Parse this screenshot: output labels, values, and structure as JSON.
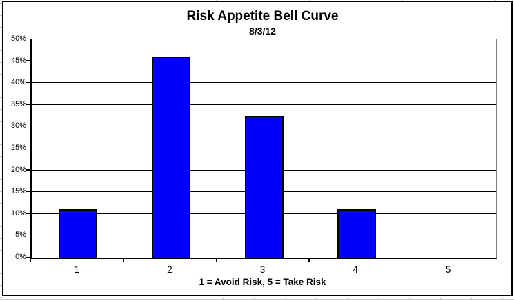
{
  "chart_data": {
    "type": "bar",
    "title": "Risk Appetite Bell Curve",
    "subtitle": "8/3/12",
    "categories": [
      "1",
      "2",
      "3",
      "4",
      "5"
    ],
    "values": [
      11,
      46,
      32.5,
      11,
      0
    ],
    "xlabel": "1 = Avoid Risk, 5 = Take Risk",
    "ylabel": "",
    "ylim": [
      0,
      50
    ],
    "y_tick_step": 5,
    "y_tick_labels": [
      "0%",
      "5%",
      "10%",
      "15%",
      "20%",
      "25%",
      "30%",
      "35%",
      "40%",
      "45%",
      "50%"
    ],
    "grid": true,
    "legend": false
  },
  "colors": {
    "bar_fill": "#0000FB",
    "bar_border": "#000000",
    "gridline": "#000000",
    "plot_border": "#808080",
    "axis_line": "#000000",
    "chart_border": "#000000",
    "spreadsheet_line": "#c9c9c9",
    "background": "#ffffff"
  }
}
